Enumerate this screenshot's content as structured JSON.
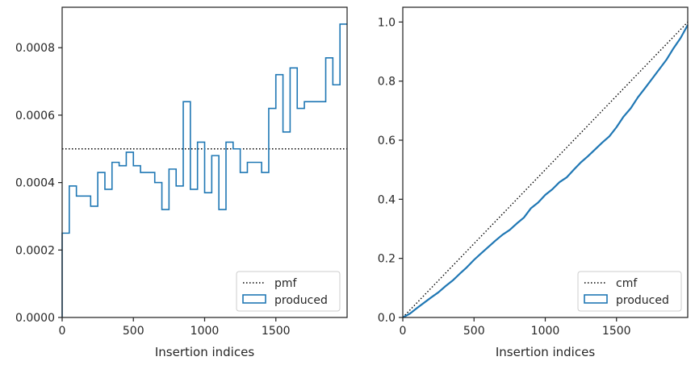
{
  "colors": {
    "series": "#1f77b4",
    "reference": "#000000",
    "axes": "#262626",
    "legend_border": "#cccccc"
  },
  "chart_data": [
    {
      "type": "line",
      "plot_style": "step-histogram",
      "title": "",
      "xlabel": "Insertion indices",
      "ylabel": "",
      "xlim": [
        0,
        2000
      ],
      "ylim": [
        0,
        0.00092
      ],
      "x_ticks": [
        0,
        500,
        1000,
        1500
      ],
      "x_tick_labels": [
        "0",
        "500",
        "1000",
        "1500"
      ],
      "y_ticks": [
        0,
        0.0002,
        0.0004,
        0.0006,
        0.0008
      ],
      "y_tick_labels": [
        "0.0000",
        "0.0002",
        "0.0004",
        "0.0006",
        "0.0008"
      ],
      "grid": false,
      "legend_position": "lower right",
      "legend": [
        {
          "label": "pmf",
          "style": "dotted-line"
        },
        {
          "label": "produced",
          "style": "box"
        }
      ],
      "reference_line": {
        "name": "pmf",
        "y": 0.0005
      },
      "series": [
        {
          "name": "produced",
          "bin_edges": [
            0,
            50,
            100,
            200,
            250,
            300,
            350,
            400,
            450,
            500,
            550,
            650,
            700,
            750,
            800,
            850,
            900,
            950,
            1000,
            1050,
            1100,
            1150,
            1200,
            1250,
            1300,
            1400,
            1450,
            1500,
            1550,
            1600,
            1650,
            1700,
            1750,
            1850,
            1900,
            1950,
            2000
          ],
          "values": [
            0.00025,
            0.00039,
            0.00036,
            0.00033,
            0.00043,
            0.00038,
            0.00046,
            0.00045,
            0.00049,
            0.00045,
            0.00043,
            0.0004,
            0.00032,
            0.00044,
            0.00039,
            0.00064,
            0.00038,
            0.00052,
            0.00037,
            0.00048,
            0.00032,
            0.00052,
            0.0005,
            0.00043,
            0.00046,
            0.00043,
            0.00062,
            0.00072,
            0.00055,
            0.00074,
            0.00062,
            0.00064,
            0.00064,
            0.00077,
            0.00069,
            0.00087
          ]
        }
      ]
    },
    {
      "type": "line",
      "title": "",
      "xlabel": "Insertion indices",
      "ylabel": "",
      "xlim": [
        0,
        2000
      ],
      "ylim": [
        0,
        1.05
      ],
      "x_ticks": [
        0,
        500,
        1000,
        1500
      ],
      "x_tick_labels": [
        "0",
        "500",
        "1000",
        "1500"
      ],
      "y_ticks": [
        0,
        0.2,
        0.4,
        0.6,
        0.8,
        1.0
      ],
      "y_tick_labels": [
        "0.0",
        "0.2",
        "0.4",
        "0.6",
        "0.8",
        "1.0"
      ],
      "grid": false,
      "legend_position": "lower right",
      "legend": [
        {
          "label": "cmf",
          "style": "dotted-line"
        },
        {
          "label": "produced",
          "style": "box"
        }
      ],
      "reference_line": {
        "name": "cmf",
        "x": [
          0,
          2000
        ],
        "y": [
          0,
          1.0
        ]
      },
      "series": [
        {
          "name": "produced",
          "x": [
            0,
            50,
            100,
            200,
            250,
            300,
            350,
            400,
            450,
            500,
            550,
            650,
            700,
            750,
            800,
            850,
            900,
            950,
            1000,
            1050,
            1100,
            1150,
            1200,
            1250,
            1300,
            1400,
            1450,
            1500,
            1550,
            1600,
            1650,
            1700,
            1750,
            1850,
            1900,
            1950,
            2000
          ],
          "y": [
            0,
            0.013,
            0.032,
            0.068,
            0.085,
            0.106,
            0.125,
            0.148,
            0.17,
            0.195,
            0.217,
            0.26,
            0.28,
            0.296,
            0.318,
            0.338,
            0.37,
            0.389,
            0.415,
            0.434,
            0.458,
            0.474,
            0.5,
            0.525,
            0.546,
            0.592,
            0.613,
            0.644,
            0.68,
            0.708,
            0.745,
            0.776,
            0.808,
            0.872,
            0.911,
            0.946,
            0.99
          ]
        }
      ]
    }
  ]
}
